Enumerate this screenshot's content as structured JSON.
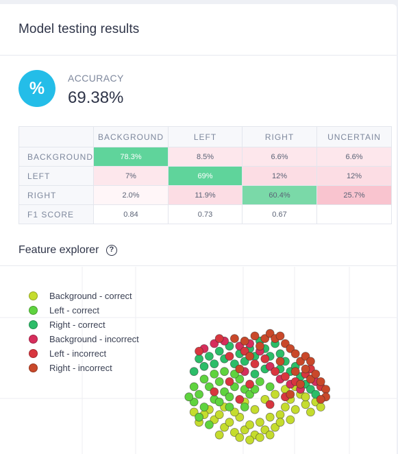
{
  "card": {
    "title": "Model testing results"
  },
  "accuracy": {
    "icon_glyph": "%",
    "label": "ACCURACY",
    "value": "69.38%"
  },
  "confusion_matrix": {
    "columns": [
      "BACKGROUND",
      "LEFT",
      "RIGHT",
      "UNCERTAIN"
    ],
    "rows": [
      {
        "label": "BACKGROUND",
        "cells": [
          "78.3%",
          "8.5%",
          "6.6%",
          "6.6%"
        ]
      },
      {
        "label": "LEFT",
        "cells": [
          "7%",
          "69%",
          "12%",
          "12%"
        ]
      },
      {
        "label": "RIGHT",
        "cells": [
          "2.0%",
          "11.9%",
          "60.4%",
          "25.7%"
        ]
      }
    ],
    "f1": {
      "label": "F1 SCORE",
      "cells": [
        "0.84",
        "0.73",
        "0.67",
        ""
      ]
    }
  },
  "feature_explorer": {
    "title": "Feature explorer",
    "help_icon": "question-circle-icon",
    "legend": [
      {
        "label": "Background - correct",
        "color": "#c5dc2e"
      },
      {
        "label": "Left - correct",
        "color": "#5fd33f"
      },
      {
        "label": "Right - correct",
        "color": "#2cbd68"
      },
      {
        "label": "Background - incorrect",
        "color": "#d62e5c"
      },
      {
        "label": "Left - incorrect",
        "color": "#d8363f"
      },
      {
        "label": "Right - incorrect",
        "color": "#c9482a"
      }
    ]
  },
  "chart_data": {
    "type": "scatter",
    "title": "",
    "xlabel": "",
    "ylabel": "",
    "xlim": [
      0,
      100
    ],
    "ylim": [
      0,
      100
    ],
    "grid": true,
    "legend_position": "top-left",
    "series": [
      {
        "name": "Background - correct",
        "color": "#c5dc2e",
        "points": [
          [
            42,
            28
          ],
          [
            44,
            20
          ],
          [
            46,
            24
          ],
          [
            48,
            14
          ],
          [
            50,
            18
          ],
          [
            52,
            10
          ],
          [
            54,
            22
          ],
          [
            56,
            12
          ],
          [
            58,
            16
          ],
          [
            60,
            8
          ],
          [
            62,
            18
          ],
          [
            64,
            12
          ],
          [
            66,
            22
          ],
          [
            68,
            14
          ],
          [
            70,
            24
          ],
          [
            72,
            30
          ],
          [
            74,
            36
          ],
          [
            76,
            28
          ],
          [
            78,
            40
          ],
          [
            80,
            32
          ],
          [
            82,
            26
          ],
          [
            84,
            34
          ],
          [
            86,
            30
          ],
          [
            48,
            30
          ],
          [
            52,
            26
          ],
          [
            56,
            34
          ],
          [
            60,
            28
          ],
          [
            64,
            36
          ],
          [
            68,
            40
          ],
          [
            72,
            44
          ],
          [
            76,
            46
          ],
          [
            80,
            38
          ],
          [
            38,
            18
          ],
          [
            40,
            24
          ],
          [
            74,
            20
          ],
          [
            70,
            18
          ],
          [
            58,
            4
          ],
          [
            62,
            6
          ],
          [
            66,
            8
          ],
          [
            54,
            6
          ],
          [
            36,
            26
          ],
          [
            46,
            8
          ]
        ]
      },
      {
        "name": "Left - correct",
        "color": "#5fd33f",
        "points": [
          [
            36,
            34
          ],
          [
            38,
            40
          ],
          [
            40,
            30
          ],
          [
            42,
            46
          ],
          [
            44,
            36
          ],
          [
            46,
            50
          ],
          [
            48,
            42
          ],
          [
            50,
            38
          ],
          [
            52,
            46
          ],
          [
            54,
            52
          ],
          [
            36,
            46
          ],
          [
            40,
            52
          ],
          [
            44,
            56
          ],
          [
            48,
            58
          ],
          [
            52,
            56
          ],
          [
            56,
            44
          ],
          [
            58,
            40
          ],
          [
            34,
            38
          ],
          [
            38,
            22
          ],
          [
            42,
            16
          ],
          [
            46,
            34
          ],
          [
            50,
            30
          ],
          [
            56,
            30
          ],
          [
            60,
            44
          ],
          [
            62,
            50
          ],
          [
            66,
            46
          ]
        ]
      },
      {
        "name": "Right - correct",
        "color": "#2cbd68",
        "points": [
          [
            40,
            62
          ],
          [
            42,
            70
          ],
          [
            44,
            64
          ],
          [
            46,
            74
          ],
          [
            48,
            68
          ],
          [
            50,
            78
          ],
          [
            52,
            64
          ],
          [
            54,
            72
          ],
          [
            56,
            66
          ],
          [
            58,
            76
          ],
          [
            60,
            70
          ],
          [
            62,
            82
          ],
          [
            64,
            76
          ],
          [
            66,
            70
          ],
          [
            68,
            80
          ],
          [
            70,
            72
          ],
          [
            72,
            66
          ],
          [
            74,
            58
          ],
          [
            76,
            62
          ],
          [
            78,
            54
          ],
          [
            80,
            48
          ],
          [
            82,
            44
          ],
          [
            84,
            40
          ],
          [
            36,
            58
          ],
          [
            38,
            68
          ],
          [
            60,
            56
          ],
          [
            64,
            60
          ],
          [
            70,
            60
          ]
        ]
      },
      {
        "name": "Background - incorrect",
        "color": "#d62e5c",
        "points": [
          [
            40,
            76
          ],
          [
            44,
            80
          ],
          [
            48,
            82
          ],
          [
            54,
            78
          ],
          [
            58,
            80
          ],
          [
            62,
            74
          ],
          [
            66,
            62
          ],
          [
            70,
            52
          ],
          [
            74,
            48
          ],
          [
            78,
            44
          ],
          [
            84,
            50
          ],
          [
            56,
            58
          ]
        ]
      },
      {
        "name": "Left - incorrect",
        "color": "#d8363f",
        "points": [
          [
            38,
            74
          ],
          [
            46,
            84
          ],
          [
            50,
            70
          ],
          [
            56,
            74
          ],
          [
            60,
            64
          ],
          [
            64,
            68
          ],
          [
            68,
            58
          ],
          [
            72,
            54
          ],
          [
            76,
            50
          ],
          [
            80,
            56
          ],
          [
            82,
            60
          ],
          [
            86,
            46
          ],
          [
            44,
            42
          ],
          [
            50,
            50
          ],
          [
            58,
            48
          ],
          [
            54,
            36
          ],
          [
            66,
            32
          ],
          [
            72,
            38
          ]
        ]
      },
      {
        "name": "Right - incorrect",
        "color": "#c9482a",
        "points": [
          [
            52,
            84
          ],
          [
            56,
            82
          ],
          [
            60,
            86
          ],
          [
            64,
            84
          ],
          [
            66,
            88
          ],
          [
            68,
            84
          ],
          [
            70,
            86
          ],
          [
            72,
            80
          ],
          [
            74,
            76
          ],
          [
            76,
            72
          ],
          [
            78,
            66
          ],
          [
            80,
            60
          ],
          [
            82,
            52
          ],
          [
            84,
            56
          ],
          [
            86,
            50
          ],
          [
            88,
            44
          ],
          [
            88,
            38
          ],
          [
            86,
            36
          ],
          [
            76,
            58
          ],
          [
            70,
            66
          ],
          [
            62,
            78
          ],
          [
            58,
            70
          ],
          [
            54,
            60
          ],
          [
            80,
            70
          ],
          [
            82,
            66
          ],
          [
            78,
            48
          ],
          [
            74,
            40
          ]
        ]
      }
    ]
  }
}
